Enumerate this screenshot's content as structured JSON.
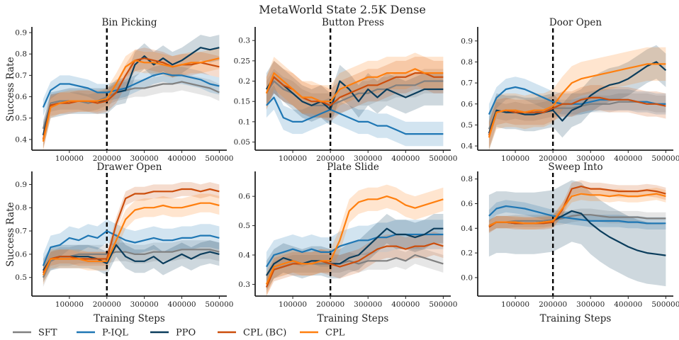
{
  "figure": {
    "title": "MetaWorld State 2.5K Dense"
  },
  "legend": {
    "placement": "bottom-left",
    "entries": [
      {
        "name": "SFT",
        "color": "#808080"
      },
      {
        "name": "P-IQL",
        "color": "#1f77b4"
      },
      {
        "name": "PPO",
        "color": "#0b3d5c"
      },
      {
        "name": "CPL (BC)",
        "color": "#cc4e0c"
      },
      {
        "name": "CPL",
        "color": "#ff7f0e"
      }
    ]
  },
  "chart_data": [
    {
      "type": "line",
      "title": "Bin Picking",
      "xlabel": "",
      "ylabel": "Success Rate",
      "xlim": [
        0,
        520000
      ],
      "ylim": [
        0.35,
        0.92
      ],
      "xticks": [
        100000,
        200000,
        300000,
        400000,
        500000
      ],
      "yticks": [
        0.4,
        0.5,
        0.6,
        0.7,
        0.8,
        0.9
      ],
      "vline": 200000,
      "grid": false,
      "x": [
        30000,
        50000,
        75000,
        100000,
        125000,
        150000,
        175000,
        200000,
        225000,
        250000,
        275000,
        300000,
        325000,
        350000,
        375000,
        400000,
        425000,
        450000,
        475000,
        500000
      ],
      "series": [
        {
          "name": "SFT",
          "values": [
            0.45,
            0.57,
            0.58,
            0.58,
            0.58,
            0.57,
            0.58,
            0.6,
            0.62,
            0.63,
            0.64,
            0.64,
            0.65,
            0.66,
            0.66,
            0.67,
            0.66,
            0.65,
            0.64,
            0.62
          ],
          "band": 0.04
        },
        {
          "name": "P-IQL",
          "values": [
            0.55,
            0.63,
            0.66,
            0.66,
            0.65,
            0.64,
            0.62,
            0.62,
            0.63,
            0.64,
            0.66,
            0.68,
            0.7,
            0.71,
            0.7,
            0.7,
            0.69,
            0.68,
            0.66,
            0.65
          ],
          "band": 0.04
        },
        {
          "name": "PPO",
          "values": [
            0.42,
            0.56,
            0.57,
            0.58,
            0.58,
            0.58,
            0.58,
            0.58,
            0.62,
            0.63,
            0.75,
            0.79,
            0.75,
            0.78,
            0.75,
            0.77,
            0.8,
            0.83,
            0.82,
            0.83
          ],
          "band": 0.06
        },
        {
          "name": "CPL (BC)",
          "values": [
            0.4,
            0.56,
            0.57,
            0.57,
            0.58,
            0.58,
            0.57,
            0.58,
            0.62,
            0.7,
            0.77,
            0.78,
            0.77,
            0.76,
            0.74,
            0.75,
            0.75,
            0.76,
            0.75,
            0.74
          ],
          "band": 0.05
        },
        {
          "name": "CPL",
          "values": [
            0.39,
            0.55,
            0.57,
            0.58,
            0.58,
            0.58,
            0.58,
            0.59,
            0.66,
            0.74,
            0.77,
            0.76,
            0.76,
            0.75,
            0.74,
            0.75,
            0.76,
            0.76,
            0.77,
            0.78
          ],
          "band": 0.05
        }
      ]
    },
    {
      "type": "line",
      "title": "Button Press",
      "xlabel": "",
      "ylabel": "",
      "xlim": [
        0,
        520000
      ],
      "ylim": [
        0.03,
        0.33
      ],
      "xticks": [
        100000,
        200000,
        300000,
        400000,
        500000
      ],
      "yticks": [
        0.05,
        0.1,
        0.15,
        0.2,
        0.25,
        0.3
      ],
      "vline": 200000,
      "grid": false,
      "x": [
        30000,
        50000,
        75000,
        100000,
        125000,
        150000,
        175000,
        200000,
        225000,
        250000,
        275000,
        300000,
        325000,
        350000,
        375000,
        400000,
        425000,
        450000,
        475000,
        500000
      ],
      "series": [
        {
          "name": "SFT",
          "values": [
            0.17,
            0.2,
            0.18,
            0.17,
            0.15,
            0.14,
            0.14,
            0.14,
            0.15,
            0.16,
            0.17,
            0.17,
            0.18,
            0.18,
            0.19,
            0.19,
            0.19,
            0.2,
            0.2,
            0.2
          ],
          "band": 0.03
        },
        {
          "name": "P-IQL",
          "values": [
            0.14,
            0.16,
            0.11,
            0.1,
            0.1,
            0.11,
            0.12,
            0.13,
            0.12,
            0.11,
            0.1,
            0.1,
            0.09,
            0.09,
            0.08,
            0.07,
            0.07,
            0.07,
            0.07,
            0.07
          ],
          "band": 0.03
        },
        {
          "name": "PPO",
          "values": [
            0.18,
            0.21,
            0.19,
            0.17,
            0.15,
            0.14,
            0.15,
            0.13,
            0.2,
            0.18,
            0.15,
            0.18,
            0.16,
            0.18,
            0.17,
            0.16,
            0.17,
            0.18,
            0.18,
            0.18
          ],
          "band": 0.04
        },
        {
          "name": "CPL (BC)",
          "values": [
            0.17,
            0.21,
            0.19,
            0.18,
            0.16,
            0.15,
            0.15,
            0.14,
            0.16,
            0.17,
            0.18,
            0.19,
            0.19,
            0.2,
            0.21,
            0.21,
            0.22,
            0.22,
            0.21,
            0.21
          ],
          "band": 0.04
        },
        {
          "name": "CPL",
          "values": [
            0.17,
            0.22,
            0.2,
            0.18,
            0.16,
            0.16,
            0.15,
            0.15,
            0.18,
            0.19,
            0.2,
            0.21,
            0.21,
            0.22,
            0.22,
            0.22,
            0.23,
            0.22,
            0.22,
            0.22
          ],
          "band": 0.04
        }
      ]
    },
    {
      "type": "line",
      "title": "Door Open",
      "xlabel": "",
      "ylabel": "",
      "xlim": [
        0,
        520000
      ],
      "ylim": [
        0.38,
        0.96
      ],
      "xticks": [
        100000,
        200000,
        300000,
        400000,
        500000
      ],
      "yticks": [
        0.4,
        0.5,
        0.6,
        0.7,
        0.8,
        0.9
      ],
      "vline": 200000,
      "grid": false,
      "x": [
        30000,
        50000,
        75000,
        100000,
        125000,
        150000,
        175000,
        200000,
        225000,
        250000,
        275000,
        300000,
        325000,
        350000,
        375000,
        400000,
        425000,
        450000,
        475000,
        500000
      ],
      "series": [
        {
          "name": "SFT",
          "values": [
            0.48,
            0.57,
            0.56,
            0.57,
            0.56,
            0.56,
            0.57,
            0.58,
            0.58,
            0.58,
            0.59,
            0.6,
            0.6,
            0.6,
            0.61,
            0.61,
            0.61,
            0.61,
            0.6,
            0.6
          ],
          "band": 0.04
        },
        {
          "name": "P-IQL",
          "values": [
            0.55,
            0.63,
            0.67,
            0.68,
            0.67,
            0.65,
            0.63,
            0.61,
            0.6,
            0.6,
            0.6,
            0.61,
            0.62,
            0.62,
            0.62,
            0.62,
            0.61,
            0.61,
            0.6,
            0.6
          ],
          "band": 0.05
        },
        {
          "name": "PPO",
          "values": [
            0.46,
            0.57,
            0.56,
            0.56,
            0.55,
            0.55,
            0.56,
            0.57,
            0.52,
            0.57,
            0.59,
            0.64,
            0.67,
            0.69,
            0.7,
            0.72,
            0.75,
            0.78,
            0.8,
            0.76
          ],
          "band": 0.08
        },
        {
          "name": "CPL (BC)",
          "values": [
            0.45,
            0.56,
            0.57,
            0.56,
            0.56,
            0.56,
            0.56,
            0.58,
            0.6,
            0.6,
            0.62,
            0.63,
            0.63,
            0.62,
            0.62,
            0.62,
            0.61,
            0.6,
            0.6,
            0.59
          ],
          "band": 0.06
        },
        {
          "name": "CPL",
          "values": [
            0.44,
            0.56,
            0.57,
            0.57,
            0.56,
            0.57,
            0.57,
            0.59,
            0.65,
            0.7,
            0.72,
            0.73,
            0.74,
            0.75,
            0.76,
            0.77,
            0.78,
            0.79,
            0.79,
            0.79
          ],
          "band": 0.08
        }
      ]
    },
    {
      "type": "line",
      "title": "Drawer Open",
      "xlabel": "Training Steps",
      "ylabel": "Success Rate",
      "xlim": [
        0,
        520000
      ],
      "ylim": [
        0.42,
        0.95
      ],
      "xticks": [
        100000,
        200000,
        300000,
        400000,
        500000
      ],
      "yticks": [
        0.5,
        0.6,
        0.7,
        0.8,
        0.9
      ],
      "vline": 200000,
      "grid": false,
      "x": [
        30000,
        50000,
        75000,
        100000,
        125000,
        150000,
        175000,
        200000,
        225000,
        250000,
        275000,
        300000,
        325000,
        350000,
        375000,
        400000,
        425000,
        450000,
        475000,
        500000
      ],
      "series": [
        {
          "name": "SFT",
          "values": [
            0.5,
            0.57,
            0.59,
            0.59,
            0.6,
            0.6,
            0.6,
            0.6,
            0.61,
            0.61,
            0.6,
            0.6,
            0.61,
            0.61,
            0.61,
            0.62,
            0.62,
            0.62,
            0.62,
            0.61
          ],
          "band": 0.04
        },
        {
          "name": "P-IQL",
          "values": [
            0.55,
            0.63,
            0.64,
            0.67,
            0.66,
            0.68,
            0.67,
            0.7,
            0.68,
            0.66,
            0.65,
            0.66,
            0.67,
            0.66,
            0.66,
            0.67,
            0.67,
            0.68,
            0.68,
            0.67
          ],
          "band": 0.05
        },
        {
          "name": "PPO",
          "values": [
            0.53,
            0.58,
            0.59,
            0.59,
            0.59,
            0.59,
            0.58,
            0.56,
            0.64,
            0.59,
            0.57,
            0.57,
            0.59,
            0.56,
            0.58,
            0.6,
            0.58,
            0.6,
            0.61,
            0.6
          ],
          "band": 0.05
        },
        {
          "name": "CPL (BC)",
          "values": [
            0.52,
            0.58,
            0.59,
            0.59,
            0.58,
            0.58,
            0.58,
            0.58,
            0.73,
            0.84,
            0.86,
            0.86,
            0.87,
            0.87,
            0.87,
            0.88,
            0.88,
            0.87,
            0.88,
            0.87
          ],
          "band": 0.03
        },
        {
          "name": "CPL",
          "values": [
            0.51,
            0.58,
            0.58,
            0.58,
            0.58,
            0.57,
            0.57,
            0.57,
            0.66,
            0.75,
            0.79,
            0.8,
            0.8,
            0.81,
            0.8,
            0.8,
            0.81,
            0.82,
            0.82,
            0.81
          ],
          "band": 0.04
        }
      ]
    },
    {
      "type": "line",
      "title": "Plate Slide",
      "xlabel": "Training Steps",
      "ylabel": "",
      "xlim": [
        0,
        520000
      ],
      "ylim": [
        0.26,
        0.68
      ],
      "xticks": [
        100000,
        200000,
        300000,
        400000,
        500000
      ],
      "yticks": [
        0.3,
        0.4,
        0.5,
        0.6
      ],
      "vline": 200000,
      "grid": false,
      "x": [
        30000,
        50000,
        75000,
        100000,
        125000,
        150000,
        175000,
        200000,
        225000,
        250000,
        275000,
        300000,
        325000,
        350000,
        375000,
        400000,
        425000,
        450000,
        475000,
        500000
      ],
      "series": [
        {
          "name": "SFT",
          "values": [
            0.3,
            0.35,
            0.36,
            0.37,
            0.37,
            0.37,
            0.37,
            0.37,
            0.37,
            0.38,
            0.37,
            0.38,
            0.38,
            0.38,
            0.39,
            0.38,
            0.4,
            0.39,
            0.38,
            0.37
          ],
          "band": 0.03
        },
        {
          "name": "P-IQL",
          "values": [
            0.36,
            0.4,
            0.41,
            0.42,
            0.41,
            0.42,
            0.41,
            0.41,
            0.43,
            0.44,
            0.45,
            0.45,
            0.46,
            0.46,
            0.47,
            0.47,
            0.47,
            0.47,
            0.47,
            0.47
          ],
          "band": 0.05
        },
        {
          "name": "PPO",
          "values": [
            0.33,
            0.37,
            0.39,
            0.38,
            0.37,
            0.38,
            0.38,
            0.37,
            0.37,
            0.39,
            0.4,
            0.43,
            0.46,
            0.49,
            0.47,
            0.47,
            0.46,
            0.47,
            0.49,
            0.49
          ],
          "band": 0.05
        },
        {
          "name": "CPL (BC)",
          "values": [
            0.29,
            0.35,
            0.36,
            0.37,
            0.37,
            0.37,
            0.38,
            0.37,
            0.36,
            0.37,
            0.38,
            0.4,
            0.42,
            0.43,
            0.43,
            0.42,
            0.43,
            0.43,
            0.44,
            0.43
          ],
          "band": 0.04
        },
        {
          "name": "CPL",
          "values": [
            0.3,
            0.36,
            0.37,
            0.38,
            0.37,
            0.37,
            0.38,
            0.38,
            0.45,
            0.55,
            0.58,
            0.59,
            0.59,
            0.6,
            0.59,
            0.57,
            0.56,
            0.57,
            0.58,
            0.59
          ],
          "band": 0.04
        }
      ]
    },
    {
      "type": "line",
      "title": "Sweep Into",
      "xlabel": "Training Steps",
      "ylabel": "",
      "xlim": [
        0,
        520000
      ],
      "ylim": [
        -0.15,
        0.85
      ],
      "xticks": [
        100000,
        200000,
        300000,
        400000,
        500000
      ],
      "yticks": [
        0.0,
        0.2,
        0.4,
        0.6,
        0.8
      ],
      "vline": 200000,
      "grid": false,
      "x": [
        30000,
        50000,
        75000,
        100000,
        125000,
        150000,
        175000,
        200000,
        225000,
        250000,
        275000,
        300000,
        325000,
        350000,
        375000,
        400000,
        425000,
        450000,
        475000,
        500000
      ],
      "series": [
        {
          "name": "SFT",
          "values": [
            0.42,
            0.45,
            0.45,
            0.46,
            0.46,
            0.46,
            0.46,
            0.47,
            0.48,
            0.5,
            0.51,
            0.51,
            0.5,
            0.49,
            0.49,
            0.49,
            0.49,
            0.48,
            0.48,
            0.48
          ],
          "band": 0.05
        },
        {
          "name": "P-IQL",
          "values": [
            0.5,
            0.56,
            0.58,
            0.57,
            0.56,
            0.54,
            0.52,
            0.5,
            0.49,
            0.48,
            0.47,
            0.46,
            0.46,
            0.46,
            0.46,
            0.45,
            0.45,
            0.44,
            0.44,
            0.44
          ],
          "band": 0.05
        },
        {
          "name": "PPO",
          "values": [
            0.42,
            0.45,
            0.45,
            0.44,
            0.44,
            0.44,
            0.45,
            0.46,
            0.5,
            0.54,
            0.52,
            0.44,
            0.38,
            0.33,
            0.29,
            0.25,
            0.22,
            0.2,
            0.19,
            0.18
          ],
          "band": 0.25
        },
        {
          "name": "CPL (BC)",
          "values": [
            0.41,
            0.45,
            0.45,
            0.44,
            0.44,
            0.44,
            0.44,
            0.45,
            0.55,
            0.72,
            0.74,
            0.72,
            0.72,
            0.71,
            0.7,
            0.7,
            0.7,
            0.71,
            0.7,
            0.68
          ],
          "band": 0.05
        },
        {
          "name": "CPL",
          "values": [
            0.42,
            0.45,
            0.45,
            0.45,
            0.44,
            0.44,
            0.45,
            0.46,
            0.56,
            0.66,
            0.68,
            0.67,
            0.67,
            0.66,
            0.67,
            0.66,
            0.66,
            0.67,
            0.68,
            0.66
          ],
          "band": 0.05
        }
      ]
    }
  ]
}
